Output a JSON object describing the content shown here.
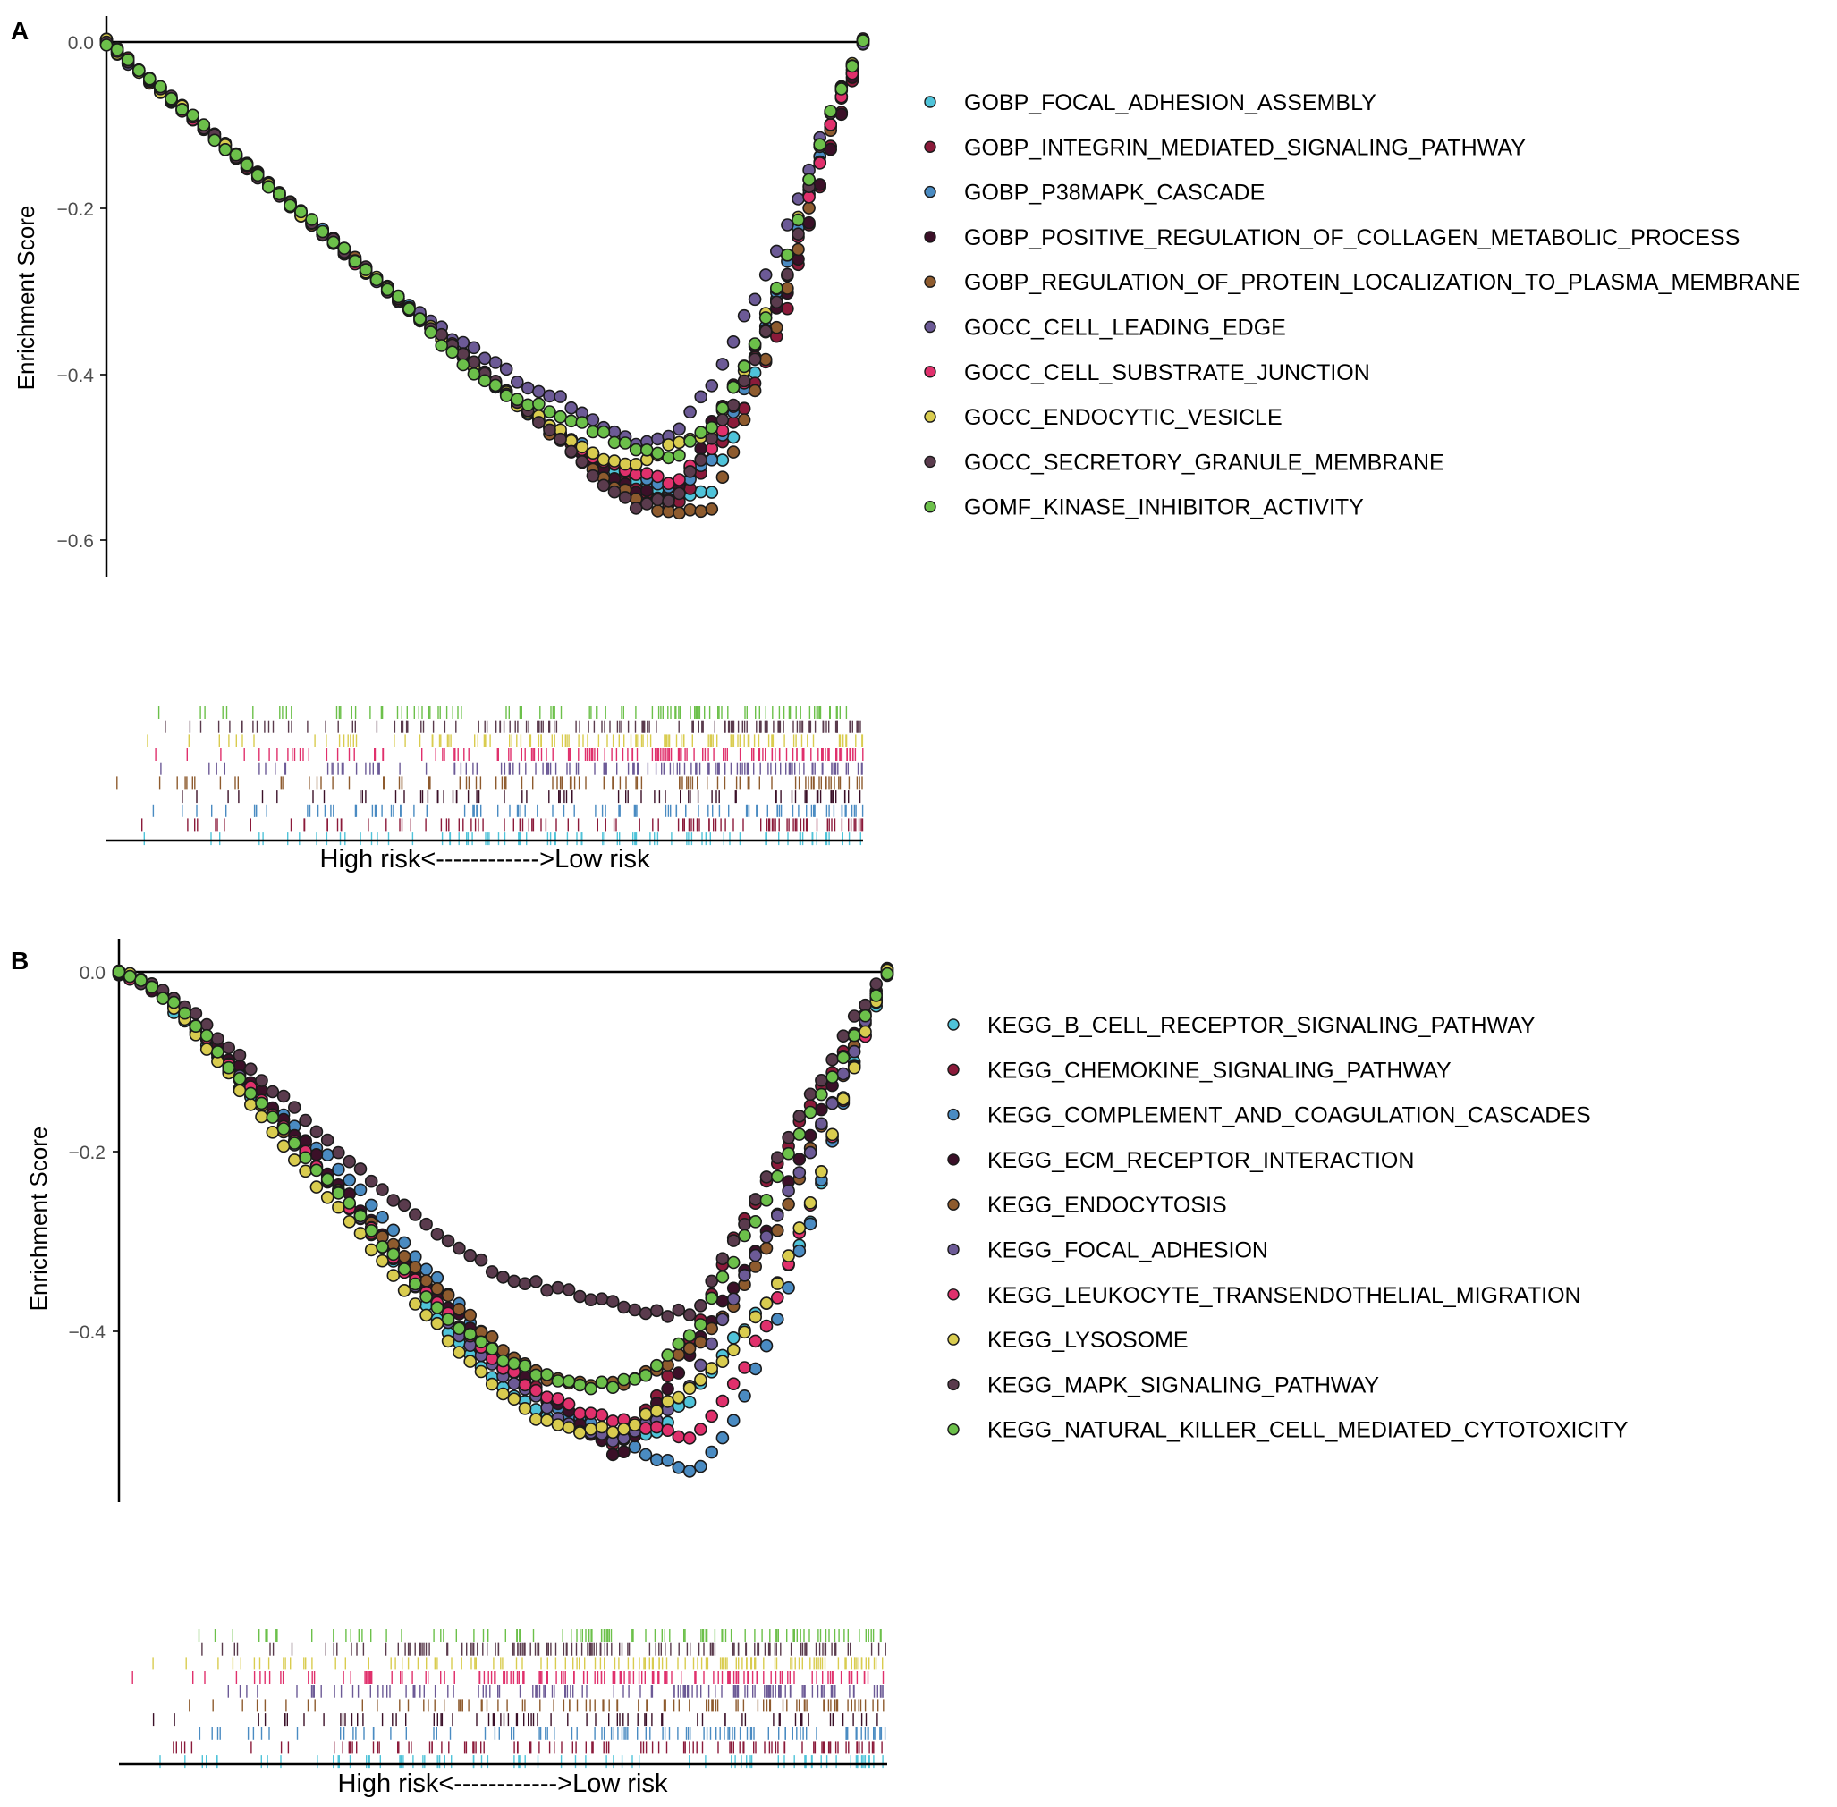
{
  "chart_data": [
    {
      "type": "line",
      "panel_label": "A",
      "ylabel": "Enrichment Score",
      "xlabel": "High risk<------------>Low risk",
      "x_domain": [
        0,
        1
      ],
      "ylim": [
        -0.64,
        0.02
      ],
      "yticks": [
        0.0,
        -0.2,
        -0.4,
        -0.6
      ],
      "ytick_labels": [
        "0.0",
        "−0.2",
        "−0.4",
        "−0.6"
      ],
      "legend_position": "right",
      "x": [
        0,
        0.05,
        0.1,
        0.15,
        0.2,
        0.25,
        0.3,
        0.35,
        0.4,
        0.45,
        0.5,
        0.55,
        0.6,
        0.65,
        0.7,
        0.75,
        0.8,
        0.85,
        0.9,
        0.95,
        1.0
      ],
      "series": [
        {
          "name": "GOBP_FOCAL_ADHESION_ASSEMBLY",
          "color": "#4FC3D9",
          "values": [
            0,
            -0.04,
            -0.08,
            -0.12,
            -0.16,
            -0.2,
            -0.24,
            -0.28,
            -0.32,
            -0.36,
            -0.4,
            -0.44,
            -0.47,
            -0.5,
            -0.53,
            -0.55,
            -0.54,
            -0.42,
            -0.26,
            -0.12,
            0
          ]
        },
        {
          "name": "GOBP_INTEGRIN_MEDIATED_SIGNALING_PATHWAY",
          "color": "#8B1A3A",
          "values": [
            0,
            -0.04,
            -0.08,
            -0.12,
            -0.16,
            -0.2,
            -0.24,
            -0.28,
            -0.32,
            -0.36,
            -0.4,
            -0.44,
            -0.47,
            -0.51,
            -0.54,
            -0.56,
            -0.5,
            -0.43,
            -0.32,
            -0.15,
            0
          ]
        },
        {
          "name": "GOBP_P38MAPK_CASCADE",
          "color": "#4A8BC2",
          "values": [
            0,
            -0.04,
            -0.08,
            -0.12,
            -0.16,
            -0.2,
            -0.24,
            -0.28,
            -0.32,
            -0.36,
            -0.4,
            -0.44,
            -0.47,
            -0.5,
            -0.52,
            -0.54,
            -0.5,
            -0.4,
            -0.26,
            -0.12,
            0
          ]
        },
        {
          "name": "GOBP_POSITIVE_REGULATION_OF_COLLAGEN_METABOLIC_PROCESS",
          "color": "#3B1028",
          "values": [
            0,
            -0.04,
            -0.08,
            -0.12,
            -0.16,
            -0.2,
            -0.24,
            -0.28,
            -0.32,
            -0.36,
            -0.4,
            -0.44,
            -0.47,
            -0.51,
            -0.54,
            -0.55,
            -0.46,
            -0.38,
            -0.3,
            -0.15,
            0
          ]
        },
        {
          "name": "GOBP_REGULATION_OF_PROTEIN_LOCALIZATION_TO_PLASMA_MEMBRANE",
          "color": "#8E5B2E",
          "values": [
            0,
            -0.04,
            -0.08,
            -0.12,
            -0.16,
            -0.2,
            -0.24,
            -0.28,
            -0.32,
            -0.36,
            -0.4,
            -0.44,
            -0.48,
            -0.52,
            -0.55,
            -0.57,
            -0.56,
            -0.44,
            -0.3,
            -0.12,
            0
          ]
        },
        {
          "name": "GOCC_CELL_LEADING_EDGE",
          "color": "#6C5A96",
          "values": [
            0,
            -0.04,
            -0.08,
            -0.12,
            -0.16,
            -0.2,
            -0.24,
            -0.28,
            -0.32,
            -0.35,
            -0.38,
            -0.41,
            -0.43,
            -0.46,
            -0.48,
            -0.47,
            -0.41,
            -0.32,
            -0.22,
            -0.1,
            0
          ]
        },
        {
          "name": "GOCC_CELL_SUBSTRATE_JUNCTION",
          "color": "#E0306C",
          "values": [
            0,
            -0.04,
            -0.08,
            -0.12,
            -0.16,
            -0.2,
            -0.24,
            -0.28,
            -0.32,
            -0.36,
            -0.4,
            -0.44,
            -0.47,
            -0.5,
            -0.52,
            -0.53,
            -0.49,
            -0.4,
            -0.28,
            -0.12,
            0
          ]
        },
        {
          "name": "GOCC_ENDOCYTIC_VESICLE",
          "color": "#D9CC4F",
          "values": [
            0,
            -0.04,
            -0.08,
            -0.12,
            -0.16,
            -0.2,
            -0.24,
            -0.28,
            -0.32,
            -0.36,
            -0.4,
            -0.44,
            -0.47,
            -0.5,
            -0.51,
            -0.48,
            -0.47,
            -0.38,
            -0.26,
            -0.1,
            0
          ]
        },
        {
          "name": "GOCC_SECRETORY_GRANULE_MEMBRANE",
          "color": "#5A3B4D",
          "values": [
            0,
            -0.04,
            -0.08,
            -0.12,
            -0.16,
            -0.2,
            -0.24,
            -0.28,
            -0.32,
            -0.36,
            -0.4,
            -0.44,
            -0.48,
            -0.53,
            -0.56,
            -0.55,
            -0.48,
            -0.4,
            -0.28,
            -0.1,
            0
          ]
        },
        {
          "name": "GOMF_KINASE_INHIBITOR_ACTIVITY",
          "color": "#6CC04A",
          "values": [
            0,
            -0.04,
            -0.08,
            -0.12,
            -0.16,
            -0.2,
            -0.24,
            -0.28,
            -0.32,
            -0.37,
            -0.41,
            -0.43,
            -0.45,
            -0.47,
            -0.49,
            -0.5,
            -0.46,
            -0.38,
            -0.26,
            -0.1,
            0
          ]
        }
      ]
    },
    {
      "type": "line",
      "panel_label": "B",
      "ylabel": "Enrichment Score",
      "xlabel": "High risk<------------>Low risk",
      "x_domain": [
        0,
        1
      ],
      "ylim": [
        -0.59,
        0.02
      ],
      "yticks": [
        0.0,
        -0.2,
        -0.4
      ],
      "ytick_labels": [
        "0.0",
        "−0.2",
        "−0.4"
      ],
      "legend_position": "right",
      "x": [
        0,
        0.05,
        0.1,
        0.15,
        0.2,
        0.25,
        0.3,
        0.35,
        0.4,
        0.45,
        0.5,
        0.55,
        0.6,
        0.65,
        0.7,
        0.75,
        0.8,
        0.85,
        0.9,
        0.95,
        1.0
      ],
      "series": [
        {
          "name": "KEGG_B_CELL_RECEPTOR_SIGNALING_PATHWAY",
          "color": "#4FC3D9",
          "values": [
            0,
            -0.02,
            -0.07,
            -0.12,
            -0.16,
            -0.21,
            -0.26,
            -0.31,
            -0.37,
            -0.42,
            -0.46,
            -0.49,
            -0.51,
            -0.52,
            -0.51,
            -0.47,
            -0.41,
            -0.36,
            -0.28,
            -0.12,
            0
          ]
        },
        {
          "name": "KEGG_CHEMOKINE_SIGNALING_PATHWAY",
          "color": "#8B1A3A",
          "values": [
            0,
            -0.02,
            -0.06,
            -0.11,
            -0.16,
            -0.21,
            -0.26,
            -0.31,
            -0.36,
            -0.4,
            -0.44,
            -0.47,
            -0.5,
            -0.53,
            -0.47,
            -0.4,
            -0.3,
            -0.22,
            -0.15,
            -0.08,
            0
          ]
        },
        {
          "name": "KEGG_COMPLEMENT_AND_COAGULATION_CASCADES",
          "color": "#4A8BC2",
          "values": [
            0,
            -0.02,
            -0.06,
            -0.11,
            -0.15,
            -0.19,
            -0.23,
            -0.28,
            -0.33,
            -0.38,
            -0.43,
            -0.47,
            -0.5,
            -0.52,
            -0.54,
            -0.56,
            -0.5,
            -0.4,
            -0.28,
            -0.12,
            0
          ]
        },
        {
          "name": "KEGG_ECM_RECEPTOR_INTERACTION",
          "color": "#3B1028",
          "values": [
            0,
            -0.02,
            -0.06,
            -0.1,
            -0.15,
            -0.2,
            -0.25,
            -0.3,
            -0.35,
            -0.39,
            -0.43,
            -0.47,
            -0.5,
            -0.54,
            -0.48,
            -0.42,
            -0.35,
            -0.28,
            -0.18,
            -0.08,
            0
          ]
        },
        {
          "name": "KEGG_ENDOCYTOSIS",
          "color": "#8E5B2E",
          "values": [
            0,
            -0.02,
            -0.06,
            -0.11,
            -0.16,
            -0.21,
            -0.26,
            -0.3,
            -0.34,
            -0.38,
            -0.42,
            -0.45,
            -0.46,
            -0.46,
            -0.44,
            -0.42,
            -0.37,
            -0.3,
            -0.2,
            -0.1,
            0
          ]
        },
        {
          "name": "KEGG_FOCAL_ADHESION",
          "color": "#6C5A96",
          "values": [
            0,
            -0.02,
            -0.06,
            -0.11,
            -0.16,
            -0.21,
            -0.26,
            -0.31,
            -0.36,
            -0.41,
            -0.45,
            -0.48,
            -0.51,
            -0.52,
            -0.5,
            -0.45,
            -0.36,
            -0.28,
            -0.2,
            -0.1,
            0
          ]
        },
        {
          "name": "KEGG_LEUKOCYTE_TRANSENDOTHELIAL_MIGRATION",
          "color": "#E0306C",
          "values": [
            0,
            -0.02,
            -0.06,
            -0.11,
            -0.16,
            -0.21,
            -0.26,
            -0.31,
            -0.36,
            -0.4,
            -0.44,
            -0.47,
            -0.49,
            -0.5,
            -0.51,
            -0.52,
            -0.46,
            -0.38,
            -0.26,
            -0.12,
            0
          ]
        },
        {
          "name": "KEGG_LYSOSOME",
          "color": "#D9CC4F",
          "values": [
            0,
            -0.02,
            -0.07,
            -0.12,
            -0.18,
            -0.23,
            -0.28,
            -0.33,
            -0.38,
            -0.43,
            -0.47,
            -0.5,
            -0.51,
            -0.51,
            -0.49,
            -0.46,
            -0.42,
            -0.36,
            -0.26,
            -0.12,
            0
          ]
        },
        {
          "name": "KEGG_MAPK_SIGNALING_PATHWAY",
          "color": "#5A3B4D",
          "values": [
            0,
            -0.02,
            -0.05,
            -0.09,
            -0.13,
            -0.17,
            -0.21,
            -0.25,
            -0.28,
            -0.31,
            -0.34,
            -0.35,
            -0.36,
            -0.37,
            -0.38,
            -0.38,
            -0.3,
            -0.22,
            -0.14,
            -0.06,
            0
          ]
        },
        {
          "name": "KEGG_NATURAL_KILLER_CELL_MEDIATED_CYTOTOXICITY",
          "color": "#6CC04A",
          "values": [
            0,
            -0.02,
            -0.06,
            -0.11,
            -0.16,
            -0.21,
            -0.26,
            -0.31,
            -0.36,
            -0.4,
            -0.43,
            -0.45,
            -0.46,
            -0.46,
            -0.44,
            -0.4,
            -0.32,
            -0.24,
            -0.16,
            -0.08,
            0
          ]
        }
      ]
    }
  ]
}
